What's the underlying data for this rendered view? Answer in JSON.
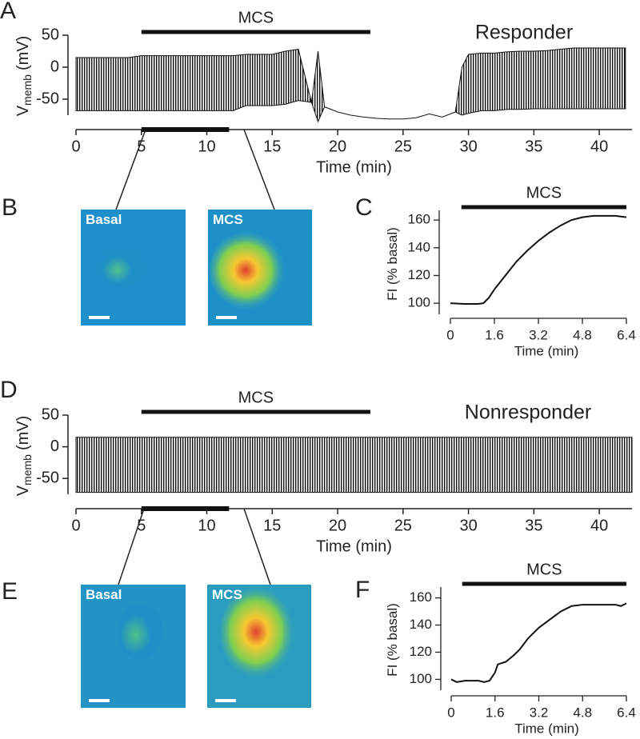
{
  "chart_data": [
    {
      "type": "area",
      "panel": "A",
      "title": "Responder",
      "annotation": "MCS",
      "annotation_range": [
        5,
        22.5
      ],
      "inset_range": [
        5,
        11.7
      ],
      "xlabel": "Time (min)",
      "ylabel": {
        "text": "V",
        "subscript": "memb",
        "unit": "(mV)"
      },
      "x": [
        0,
        1,
        2,
        3,
        4,
        5,
        6,
        7,
        8,
        9,
        10,
        11,
        12,
        13,
        14,
        15,
        16,
        17,
        18,
        18.5,
        19,
        20,
        21,
        22,
        23,
        24,
        25,
        26,
        27,
        28,
        29,
        29.5,
        30,
        31,
        32,
        33,
        34,
        35,
        36,
        37,
        38,
        39,
        40,
        41,
        42
      ],
      "series": [
        {
          "color": "#111111",
          "values": [
            15,
            15,
            15,
            15,
            15,
            18,
            18,
            18,
            18,
            18,
            18,
            18,
            18,
            20,
            20,
            20,
            25,
            28,
            -55,
            25,
            -62,
            -70,
            -75,
            -78,
            -80,
            -81,
            -81,
            -79,
            -73,
            -78,
            -70,
            0,
            20,
            22,
            22,
            24,
            25,
            25,
            26,
            28,
            30,
            30,
            30,
            30,
            30
          ]
        },
        {
          "color": "#111111",
          "values": [
            -68,
            -68,
            -68,
            -68,
            -68,
            -68,
            -68,
            -68,
            -68,
            -68,
            -68,
            -68,
            -68,
            -60,
            -60,
            -60,
            -58,
            -52,
            -55,
            -85,
            -62,
            -70,
            -75,
            -78,
            -80,
            -81,
            -81,
            -79,
            -73,
            -78,
            -70,
            -75,
            -72,
            -68,
            -68,
            -66,
            -66,
            -65,
            -65,
            -65,
            -65,
            -65,
            -65,
            -65,
            -65
          ]
        }
      ],
      "xlim": [
        0,
        42.5
      ],
      "ylim": [
        -75,
        50
      ],
      "xticks": [
        0,
        5,
        10,
        15,
        20,
        25,
        30,
        35,
        40
      ],
      "yticks": [
        -50,
        0,
        50
      ]
    },
    {
      "type": "line",
      "panel": "C",
      "annotation": "MCS",
      "annotation_range": [
        0.4,
        6.4
      ],
      "xlabel": "Time (min)",
      "ylabel": {
        "text": "FI (% basal)"
      },
      "x": [
        0,
        0.5,
        1,
        1.2,
        1.4,
        1.6,
        2,
        2.4,
        2.8,
        3.2,
        3.6,
        4,
        4.4,
        4.8,
        5.2,
        5.6,
        6,
        6.4
      ],
      "series": [
        {
          "color": "#111111",
          "values": [
            100,
            99.5,
            99.5,
            100,
            104,
            110,
            120,
            130,
            138,
            145,
            151,
            156,
            160,
            162,
            163,
            163,
            163,
            162
          ]
        }
      ],
      "xlim": [
        0,
        6.4
      ],
      "ylim": [
        92,
        167
      ],
      "xticks": [
        0,
        1.6,
        3.2,
        4.8,
        6.4
      ],
      "yticks": [
        100,
        120,
        140,
        160
      ]
    },
    {
      "type": "area",
      "panel": "D",
      "title": "Nonresponder",
      "annotation": "MCS",
      "annotation_range": [
        5,
        22.5
      ],
      "inset_range": [
        5,
        11.7
      ],
      "xlabel": "Time (min)",
      "ylabel": {
        "text": "V",
        "subscript": "memb",
        "unit": "(mV)"
      },
      "x": [
        0,
        10,
        20,
        30,
        42.5
      ],
      "series": [
        {
          "color": "#111111",
          "values": [
            15,
            15,
            15,
            15,
            15
          ]
        },
        {
          "color": "#111111",
          "values": [
            -72,
            -72,
            -72,
            -72,
            -72
          ]
        }
      ],
      "xlim": [
        0,
        42.5
      ],
      "ylim": [
        -75,
        50
      ],
      "xticks": [
        0,
        5,
        10,
        15,
        20,
        25,
        30,
        35,
        40
      ],
      "yticks": [
        -50,
        0,
        50
      ]
    },
    {
      "type": "line",
      "panel": "F",
      "annotation": "MCS",
      "annotation_range": [
        0.4,
        6.4
      ],
      "xlabel": "Time (min)",
      "ylabel": {
        "text": "FI (% basal)"
      },
      "x": [
        0,
        0.2,
        0.5,
        1,
        1.2,
        1.4,
        1.6,
        1.7,
        2,
        2.3,
        2.5,
        2.8,
        3.2,
        3.6,
        4,
        4.4,
        4.8,
        5.5,
        6,
        6.2,
        6.4
      ],
      "series": [
        {
          "color": "#111111",
          "values": [
            100,
            98,
            99,
            99,
            98,
            99,
            105,
            111,
            113,
            118,
            122,
            130,
            138,
            144,
            150,
            154,
            155,
            155,
            155,
            154,
            156
          ]
        }
      ],
      "xlim": [
        0,
        6.4
      ],
      "ylim": [
        92,
        168
      ],
      "xticks": [
        0,
        1.6,
        3.2,
        4.8,
        6.4
      ],
      "yticks": [
        100,
        120,
        140,
        160
      ]
    }
  ],
  "image_panels": [
    {
      "label": "B",
      "images": [
        "Basal",
        "MCS"
      ]
    },
    {
      "label": "E",
      "images": [
        "Basal",
        "MCS"
      ]
    }
  ]
}
